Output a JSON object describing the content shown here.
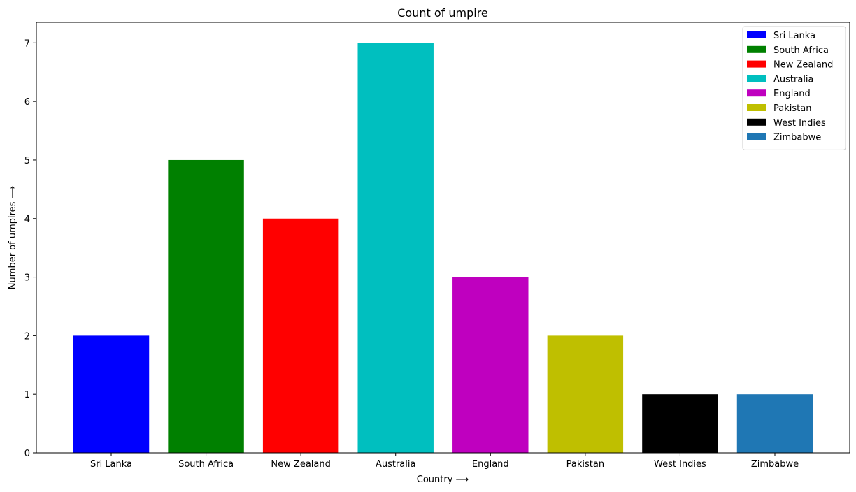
{
  "chart_data": {
    "type": "bar",
    "title": "Count of umpire",
    "xlabel": "Country  ⟶",
    "ylabel": "Number of umpires  ⟶",
    "categories": [
      " Sri Lanka",
      " South Africa",
      " New Zealand",
      " Australia",
      " England",
      " Pakistan",
      " West Indies",
      " Zimbabwe"
    ],
    "values": [
      2,
      5,
      4,
      7,
      3,
      2,
      1,
      1
    ],
    "colors": [
      "#0000ff",
      "#008000",
      "#ff0000",
      "#00bfbf",
      "#bf00bf",
      "#bfbf00",
      "#000000",
      "#1f77b4"
    ],
    "yticks": [
      0,
      1,
      2,
      3,
      4,
      5,
      6,
      7
    ],
    "ylim": [
      0,
      7.35
    ],
    "grid": false,
    "legend_position": "top-right"
  }
}
